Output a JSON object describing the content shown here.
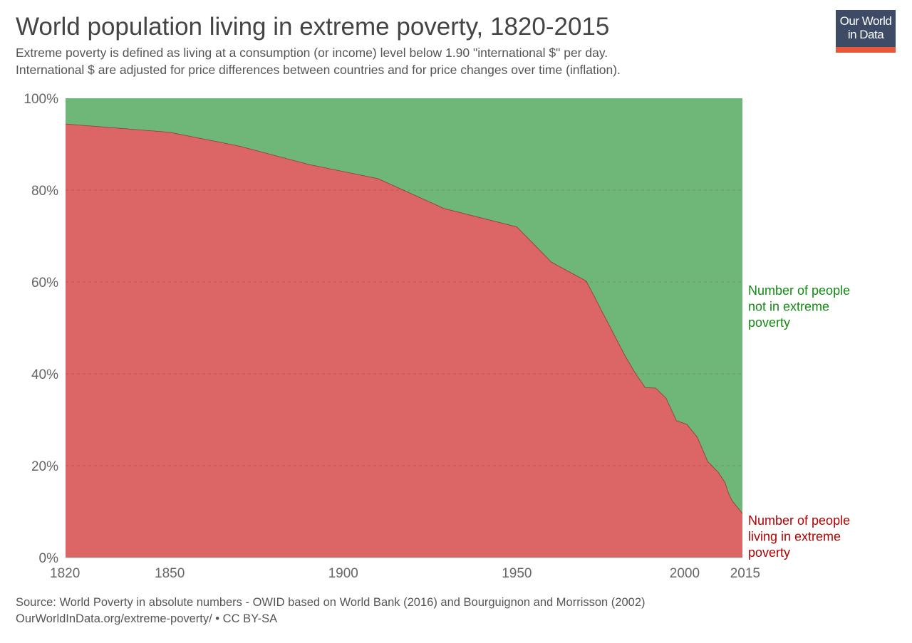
{
  "header": {
    "title": "World population living in extreme poverty, 1820-2015",
    "subtitle_line1": "Extreme poverty is defined as living at a consumption (or income) level below 1.90 \"international $\" per day.",
    "subtitle_line2": "International $ are adjusted for price differences between countries and for price changes over time (inflation)."
  },
  "logo": {
    "line1": "Our World",
    "line2": "in Data"
  },
  "footer": {
    "source": "Source: World Poverty in absolute numbers - OWID based on World Bank (2016) and Bourguignon and Morrisson (2002)",
    "license": "OurWorldInData.org/extreme-poverty/ • CC BY-SA"
  },
  "chart_data": {
    "type": "area",
    "stacked": true,
    "normalized": true,
    "title": "World population living in extreme poverty, 1820-2015",
    "x": [
      1820,
      1850,
      1870,
      1890,
      1910,
      1929,
      1950,
      1960,
      1970,
      1981,
      1984,
      1987,
      1990,
      1993,
      1996,
      1999,
      2002,
      2005,
      2008,
      2010,
      2011,
      2012,
      2015
    ],
    "series": [
      {
        "name": "Number of people living in extreme poverty",
        "color": "#dc6565",
        "label_color": "#b30000",
        "values": [
          94.4,
          92.6,
          89.6,
          85.6,
          82.5,
          76,
          72,
          64.3,
          60.2,
          44.2,
          40.3,
          37,
          36.9,
          34.7,
          29.8,
          29,
          26.2,
          20.9,
          18.6,
          16.3,
          14,
          12.4,
          9.6
        ]
      },
      {
        "name": "Number of people not in extreme poverty",
        "color": "#6fb679",
        "label_color": "#138a13",
        "values": [
          5.6,
          7.4,
          10.4,
          14.4,
          17.5,
          24,
          28,
          35.7,
          39.8,
          55.8,
          59.7,
          63,
          63.1,
          65.3,
          70.2,
          71,
          73.8,
          79.1,
          81.4,
          83.7,
          86,
          87.6,
          90.4
        ]
      }
    ],
    "xlim": [
      1820,
      2015
    ],
    "ylim": [
      0,
      100
    ],
    "x_ticks": [
      "1820",
      "1850",
      "1900",
      "1950",
      "2000",
      "2015"
    ],
    "y_ticks": [
      "0%",
      "20%",
      "40%",
      "60%",
      "80%",
      "100%"
    ],
    "grid": true,
    "legend": "right, inline labels"
  }
}
